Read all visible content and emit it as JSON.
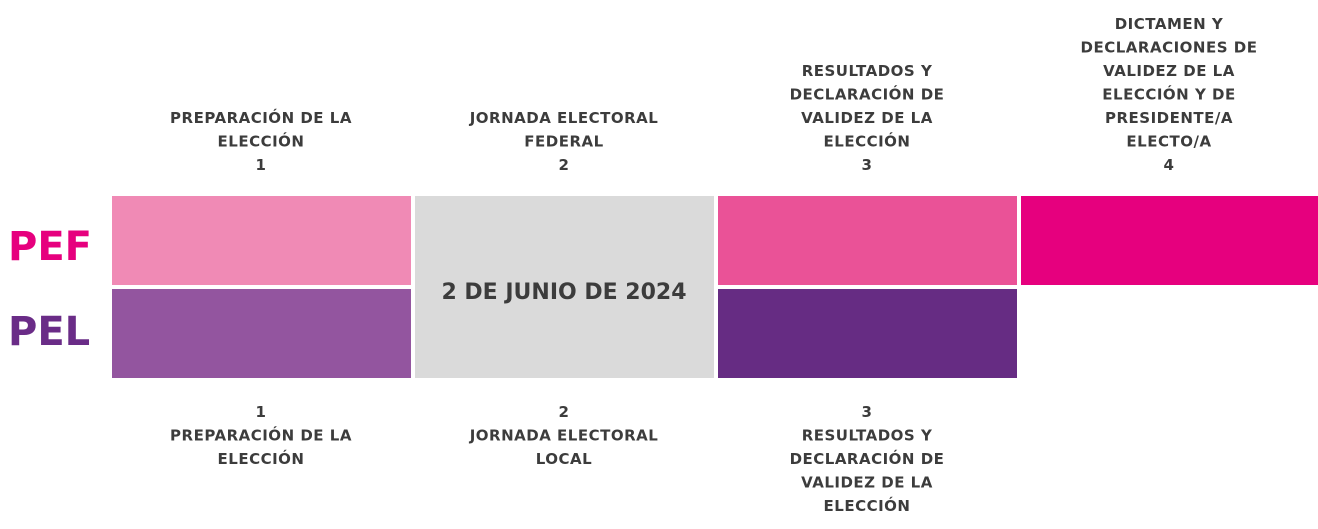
{
  "rows": [
    {
      "label": "PEF"
    },
    {
      "label": "PEL"
    }
  ],
  "date": "2 DE JUNIO DE 2024",
  "pef_stages": [
    {
      "lines": [
        "PREPARACIÓN DE LA",
        "ELECCIÓN"
      ],
      "number": "1"
    },
    {
      "lines": [
        "JORNADA ELECTORAL",
        "FEDERAL"
      ],
      "number": "2"
    },
    {
      "lines": [
        "RESULTADOS Y",
        "DECLARACIÓN DE",
        "VALIDEZ DE LA",
        "ELECCIÓN"
      ],
      "number": "3"
    },
    {
      "lines": [
        "DICTAMEN Y",
        "DECLARACIONES DE",
        "VALIDEZ DE LA",
        "ELECCIÓN Y DE",
        "PRESIDENTE/A",
        "ELECTO/A"
      ],
      "number": "4"
    }
  ],
  "pel_stages": [
    {
      "number": "1",
      "lines": [
        "PREPARACIÓN DE LA",
        "ELECCIÓN"
      ]
    },
    {
      "number": "2",
      "lines": [
        "JORNADA ELECTORAL",
        "LOCAL"
      ]
    },
    {
      "number": "3",
      "lines": [
        "RESULTADOS Y",
        "DECLARACIÓN DE",
        "VALIDEZ DE LA",
        "ELECCIÓN"
      ]
    }
  ]
}
